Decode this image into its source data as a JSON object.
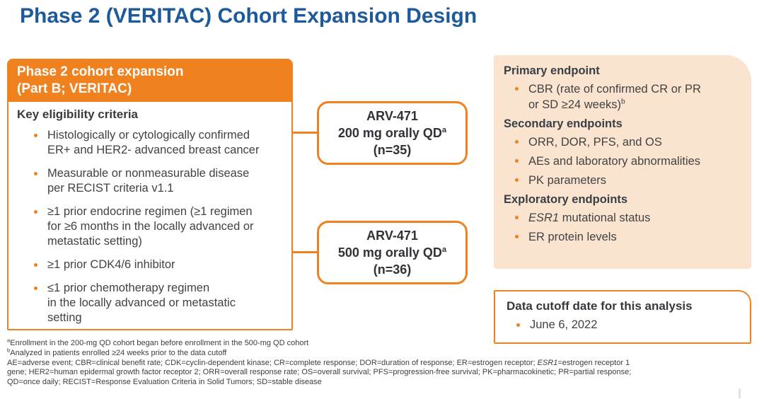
{
  "title": "Phase 2 (VERITAC) Cohort Expansion Design",
  "colors": {
    "accent_orange": "#F0811F",
    "panel_peach": "#FBE4CF",
    "title_blue": "#1D5A9C",
    "body_text": "#404040"
  },
  "left_panel": {
    "header_line1": "Phase 2 cohort expansion",
    "header_line2": "(Part B; VERITAC)",
    "subheading": "Key eligibility criteria",
    "bullets": [
      "Histologically or cytologically confirmed\nER+ and HER2- advanced breast cancer",
      "Measurable or nonmeasurable disease\nper RECIST criteria v1.1",
      "≥1 prior endocrine regimen (≥1 regimen\nfor ≥6 months in the locally advanced or\nmetastatic setting)",
      "≥1 prior CDK4/6 inhibitor",
      "≤1 prior chemotherapy regimen\nin the locally advanced or metastatic\nsetting"
    ]
  },
  "arms": [
    {
      "name": "ARV-471",
      "dose": "200 mg orally QD",
      "dose_sup": "a",
      "n": "(n=35)"
    },
    {
      "name": "ARV-471",
      "dose": "500 mg orally QD",
      "dose_sup": "a",
      "n": "(n=36)"
    }
  ],
  "endpoints": {
    "primary_heading": "Primary endpoint",
    "primary_bullet_text": "CBR (rate of confirmed CR or PR\nor SD ≥24 weeks)",
    "primary_bullet_sup": "b",
    "secondary_heading": "Secondary endpoints",
    "secondary_bullets": [
      "ORR, DOR, PFS, and OS",
      "AEs and laboratory abnormalities",
      "PK parameters"
    ],
    "exploratory_heading": "Exploratory endpoints",
    "exploratory_bullet1_italic": "ESR1",
    "exploratory_bullet1_rest": " mutational status",
    "exploratory_bullet2": "ER protein levels"
  },
  "data_cutoff": {
    "heading": "Data cutoff date for this analysis",
    "date": "June 6, 2022"
  },
  "footnotes": {
    "a_sup": "a",
    "a_text": "Enrollment in the 200-mg QD cohort began before enrollment in the 500-mg QD cohort",
    "b_sup": "b",
    "b_text": "Analyzed in patients enrolled ≥24 weeks prior to the data cutoff",
    "abbrev_line1_pre": "AE=adverse event; CBR=clinical benefit rate; CDK=cyclin-dependent kinase; CR=complete response; DOR=duration of response; ER=estrogen receptor; ",
    "abbrev_line1_italic": "ESR1",
    "abbrev_line1_post": "=estrogen receptor 1",
    "abbrev_line2": "gene; HER2=human epidermal growth factor receptor 2; ORR=overall response rate; OS=overall survival; PFS=progression-free survival; PK=pharmacokinetic; PR=partial response;",
    "abbrev_line3": "QD=once daily; RECIST=Response Evaluation Criteria in Solid Tumors; SD=stable disease"
  }
}
